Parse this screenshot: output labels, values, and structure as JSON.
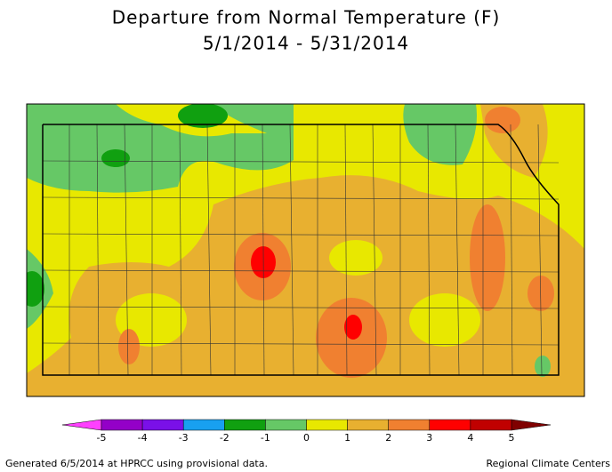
{
  "title": "Departure from Normal Temperature (F)",
  "subtitle": "5/1/2014 - 5/31/2014",
  "legend": {
    "ticks": [
      -5,
      -4,
      -3,
      -2,
      -1,
      0,
      1,
      2,
      3,
      4,
      5
    ],
    "colors": [
      "#9400c8",
      "#7a10e8",
      "#18a0f0",
      "#10a010",
      "#66c866",
      "#e8e800",
      "#e8b030",
      "#f08030",
      "#ff0000",
      "#c00000"
    ],
    "under_color": "#ff40ff",
    "over_color": "#800000"
  },
  "footer": {
    "left": "Generated 6/5/2014 at HPRCC using provisional data.",
    "right": "Regional Climate Centers"
  }
}
